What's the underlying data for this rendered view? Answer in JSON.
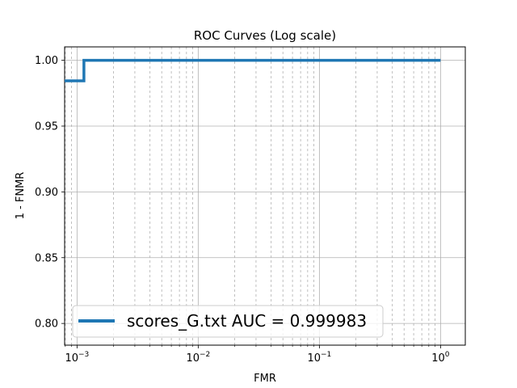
{
  "chart_data": {
    "type": "line",
    "title": "ROC Curves (Log scale)",
    "xlabel": "FMR",
    "ylabel": "1 - FNMR",
    "xscale": "log",
    "xlim": [
      0.00079,
      1.6
    ],
    "ylim": [
      0.7835,
      1.0102
    ],
    "xticks": [
      {
        "value": 0.001,
        "base": "10",
        "exp": "−3"
      },
      {
        "value": 0.01,
        "base": "10",
        "exp": "−2"
      },
      {
        "value": 0.1,
        "base": "10",
        "exp": "−1"
      },
      {
        "value": 1,
        "base": "10",
        "exp": "0"
      }
    ],
    "yticks": [
      {
        "value": 0.8,
        "label": "0.80"
      },
      {
        "value": 0.85,
        "label": "0.85"
      },
      {
        "value": 0.9,
        "label": "0.90"
      },
      {
        "value": 0.95,
        "label": "0.95"
      },
      {
        "value": 1.0,
        "label": "1.00"
      }
    ],
    "grid": true,
    "legend_position": "lower-left",
    "series": [
      {
        "name": "scores_G.txt AUC = 0.999983",
        "color": "#1f77b4",
        "x": [
          0.00079,
          0.00114,
          0.00114,
          1.0
        ],
        "y": [
          0.9844,
          0.9844,
          1.0,
          1.0
        ]
      }
    ]
  }
}
